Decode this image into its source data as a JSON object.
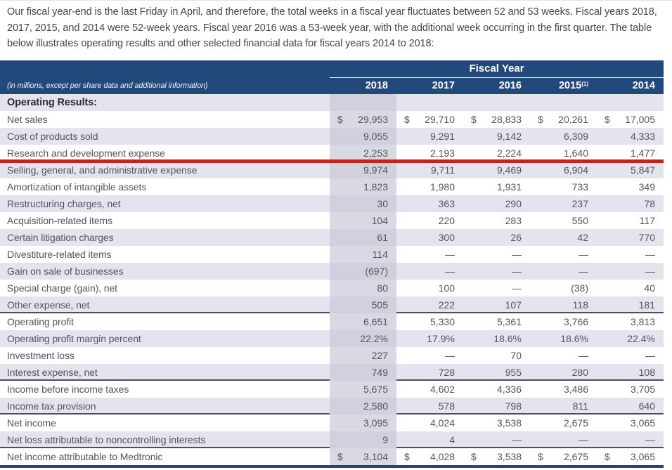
{
  "intro": {
    "text": "Our fiscal year-end is the last Friday in April, and therefore, the total weeks in a fiscal year fluctuates between 52 and 53 weeks. Fiscal years 2018, 2017, 2015, and 2014 were 52-week years. Fiscal year 2016 was a 53-week year, with the additional week occurring in the first quarter. The table below illustrates operating results and other selected financial data for fiscal years 2014 to 2018:"
  },
  "table": {
    "group_header": "Fiscal Year",
    "unit_note": "(in millions, except per share data and additional information)",
    "currency_symbol": "$",
    "highlighted_column": "2018",
    "columns": [
      {
        "label": "2018",
        "sup": ""
      },
      {
        "label": "2017",
        "sup": ""
      },
      {
        "label": "2016",
        "sup": ""
      },
      {
        "label": "2015",
        "sup": "(1)"
      },
      {
        "label": "2014",
        "sup": ""
      }
    ],
    "rows": [
      {
        "type": "section",
        "label": "Operating Results:",
        "values": [
          "",
          "",
          "",
          "",
          ""
        ]
      },
      {
        "type": "data",
        "label": "Net sales",
        "dollar": true,
        "values": [
          "29,953",
          "29,710",
          "28,833",
          "20,261",
          "17,005"
        ]
      },
      {
        "type": "data",
        "label": "Cost of products sold",
        "values": [
          "9,055",
          "9,291",
          "9,142",
          "6,309",
          "4,333"
        ]
      },
      {
        "type": "data",
        "label": "Research and development expense",
        "values": [
          "2,253",
          "2,193",
          "2,224",
          "1,640",
          "1,477"
        ],
        "rule_below": "red"
      },
      {
        "type": "data",
        "label": "Selling, general, and administrative expense",
        "values": [
          "9,974",
          "9,711",
          "9,469",
          "6,904",
          "5,847"
        ]
      },
      {
        "type": "data",
        "label": "Amortization of intangible assets",
        "values": [
          "1,823",
          "1,980",
          "1,931",
          "733",
          "349"
        ]
      },
      {
        "type": "data",
        "label": "Restructuring charges, net",
        "values": [
          "30",
          "363",
          "290",
          "237",
          "78"
        ]
      },
      {
        "type": "data",
        "label": "Acquisition-related items",
        "values": [
          "104",
          "220",
          "283",
          "550",
          "117"
        ]
      },
      {
        "type": "data",
        "label": "Certain litigation charges",
        "values": [
          "61",
          "300",
          "26",
          "42",
          "770"
        ]
      },
      {
        "type": "data",
        "label": "Divestiture-related items",
        "values": [
          "114",
          "—",
          "—",
          "—",
          "—"
        ]
      },
      {
        "type": "data",
        "label": "Gain on sale of businesses",
        "values": [
          "(697)",
          "—",
          "—",
          "—",
          "—"
        ]
      },
      {
        "type": "data",
        "label": "Special charge (gain), net",
        "values": [
          "80",
          "100",
          "—",
          "(38)",
          "40"
        ]
      },
      {
        "type": "data",
        "label": "Other expense, net",
        "values": [
          "505",
          "222",
          "107",
          "118",
          "181"
        ],
        "rule_below": "dark"
      },
      {
        "type": "data",
        "label": "Operating profit",
        "values": [
          "6,651",
          "5,330",
          "5,361",
          "3,766",
          "3,813"
        ]
      },
      {
        "type": "data",
        "label": "Operating profit margin percent",
        "values": [
          "22.2%",
          "17.9%",
          "18.6%",
          "18.6%",
          "22.4%"
        ]
      },
      {
        "type": "data",
        "label": "Investment loss",
        "values": [
          "227",
          "—",
          "70",
          "—",
          "—"
        ]
      },
      {
        "type": "data",
        "label": "Interest expense, net",
        "values": [
          "749",
          "728",
          "955",
          "280",
          "108"
        ],
        "rule_below": "dark"
      },
      {
        "type": "data",
        "label": "Income before income taxes",
        "values": [
          "5,675",
          "4,602",
          "4,336",
          "3,486",
          "3,705"
        ]
      },
      {
        "type": "data",
        "label": "Income tax provision",
        "values": [
          "2,580",
          "578",
          "798",
          "811",
          "640"
        ],
        "rule_below": "dark"
      },
      {
        "type": "data",
        "label": "Net income",
        "values": [
          "3,095",
          "4,024",
          "3,538",
          "2,675",
          "3,065"
        ]
      },
      {
        "type": "data",
        "label": "Net loss attributable to noncontrolling interests",
        "values": [
          "9",
          "4",
          "—",
          "—",
          "—"
        ],
        "rule_below": "dark"
      },
      {
        "type": "data",
        "label": "Net income attributable to Medtronic",
        "dollar": true,
        "values": [
          "3,104",
          "4,028",
          "3,538",
          "2,675",
          "3,065"
        ]
      }
    ],
    "annotation": {
      "type": "red-underline",
      "row": "Research and development expense",
      "color": "#C8221C"
    }
  },
  "colors": {
    "header_navy": "#21497B",
    "stripe_lavender": "#E4E4EF",
    "column_highlight_on_white": "#D9D9E3",
    "column_highlight_on_lavender": "#D0D0DE",
    "red_annotation": "#C8221C",
    "dark_rule": "#4F4F58",
    "bottom_rule_navy": "#27477B"
  }
}
